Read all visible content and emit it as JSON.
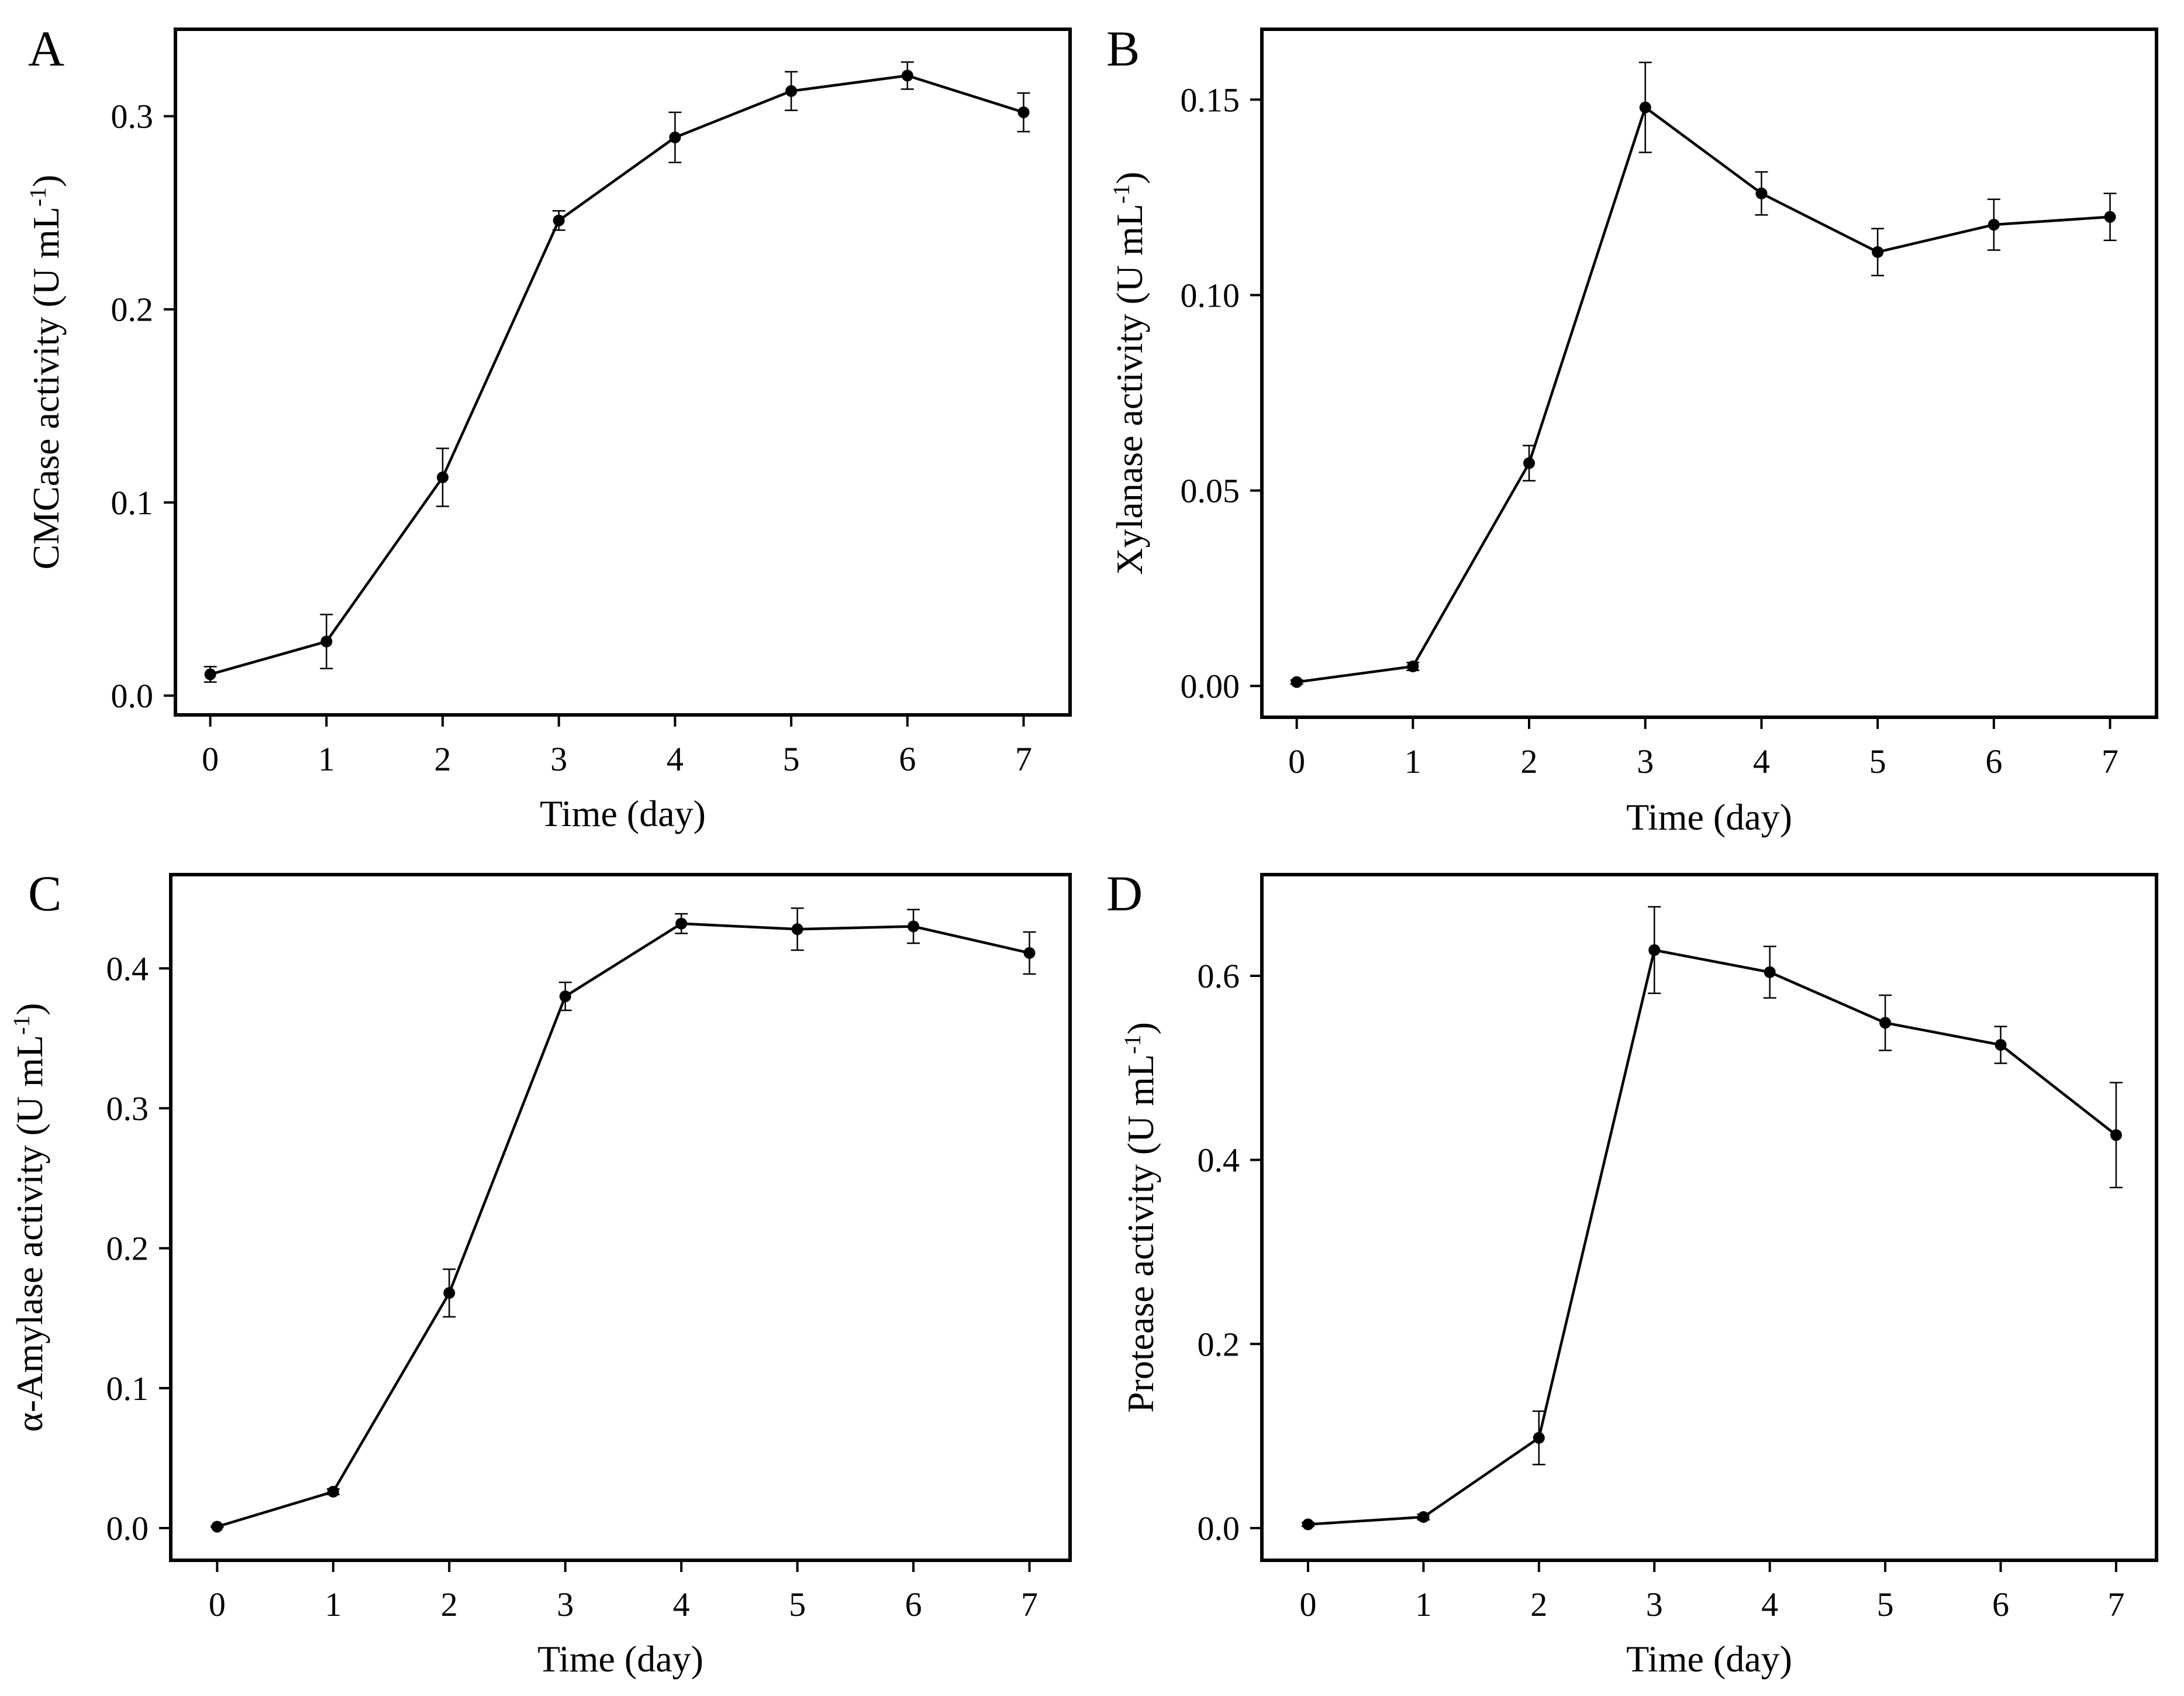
{
  "colors": {
    "line": "#000000",
    "background": "#ffffff"
  },
  "chart_data": [
    {
      "panel": "A",
      "type": "line",
      "xlabel": "Time (day)",
      "ylabel": "CMCase activity (U mL⁻¹)",
      "ylabel_base": "CMCase activity (U mL",
      "ylabel_sup": "-1",
      "ylabel_close": ")",
      "xlim": [
        -0.3,
        7.4
      ],
      "ylim": [
        -0.01,
        0.345
      ],
      "x_ticks": [
        0,
        1,
        2,
        3,
        4,
        5,
        6,
        7
      ],
      "x_tick_labels": [
        "0",
        "1",
        "2",
        "3",
        "4",
        "5",
        "6",
        "7"
      ],
      "y_ticks": [
        0.0,
        0.1,
        0.2,
        0.3
      ],
      "y_tick_labels": [
        "0.0",
        "0.1",
        "0.2",
        "0.3"
      ],
      "x": [
        0,
        1,
        2,
        3,
        4,
        5,
        6,
        7
      ],
      "values": [
        0.011,
        0.028,
        0.113,
        0.246,
        0.289,
        0.313,
        0.321,
        0.302
      ],
      "errors": [
        0.004,
        0.014,
        0.015,
        0.005,
        0.013,
        0.01,
        0.007,
        0.01
      ]
    },
    {
      "panel": "B",
      "type": "line",
      "xlabel": "Time (day)",
      "ylabel": "Xylanase activity (U mL⁻¹)",
      "ylabel_base": "Xylanase activity (U mL",
      "ylabel_sup": "-1",
      "ylabel_close": ")",
      "xlim": [
        -0.3,
        7.4
      ],
      "ylim": [
        -0.008,
        0.168
      ],
      "x_ticks": [
        0,
        1,
        2,
        3,
        4,
        5,
        6,
        7
      ],
      "x_tick_labels": [
        "0",
        "1",
        "2",
        "3",
        "4",
        "5",
        "6",
        "7"
      ],
      "y_ticks": [
        0.0,
        0.05,
        0.1,
        0.15
      ],
      "y_tick_labels": [
        "0.00",
        "0.05",
        "0.10",
        "0.15"
      ],
      "x": [
        0,
        1,
        2,
        3,
        4,
        5,
        6,
        7
      ],
      "values": [
        0.001,
        0.005,
        0.057,
        0.148,
        0.126,
        0.111,
        0.118,
        0.12
      ],
      "errors": [
        0.0005,
        0.001,
        0.0045,
        0.0115,
        0.0055,
        0.006,
        0.0065,
        0.006
      ]
    },
    {
      "panel": "C",
      "type": "line",
      "xlabel": "Time (day)",
      "ylabel": "α-Amylase activity (U mL⁻¹)",
      "ylabel_base": "α-Amylase activity (U mL",
      "ylabel_sup": "-1",
      "ylabel_close": ")",
      "xlim": [
        -0.4,
        7.35
      ],
      "ylim": [
        -0.023,
        0.467
      ],
      "x_ticks": [
        0,
        1,
        2,
        3,
        4,
        5,
        6,
        7
      ],
      "x_tick_labels": [
        "0",
        "1",
        "2",
        "3",
        "4",
        "5",
        "6",
        "7"
      ],
      "y_ticks": [
        0.0,
        0.1,
        0.2,
        0.3,
        0.4
      ],
      "y_tick_labels": [
        "0.0",
        "0.1",
        "0.2",
        "0.3",
        "0.4"
      ],
      "x": [
        0,
        1,
        2,
        3,
        4,
        5,
        6,
        7
      ],
      "values": [
        0.001,
        0.026,
        0.168,
        0.38,
        0.432,
        0.428,
        0.43,
        0.411
      ],
      "errors": [
        0.0005,
        0.002,
        0.017,
        0.01,
        0.007,
        0.015,
        0.012,
        0.015
      ]
    },
    {
      "panel": "D",
      "type": "line",
      "xlabel": "Time (day)",
      "ylabel": "Protease activity (U mL⁻¹)",
      "ylabel_base": "Protease activity (U mL",
      "ylabel_sup": "-1",
      "ylabel_close": ")",
      "xlim": [
        -0.4,
        7.35
      ],
      "ylim": [
        -0.035,
        0.71
      ],
      "x_ticks": [
        0,
        1,
        2,
        3,
        4,
        5,
        6,
        7
      ],
      "x_tick_labels": [
        "0",
        "1",
        "2",
        "3",
        "4",
        "5",
        "6",
        "7"
      ],
      "y_ticks": [
        0.0,
        0.2,
        0.4,
        0.6
      ],
      "y_tick_labels": [
        "0.0",
        "0.2",
        "0.4",
        "0.6"
      ],
      "x": [
        0,
        1,
        2,
        3,
        4,
        5,
        6,
        7
      ],
      "values": [
        0.004,
        0.012,
        0.098,
        0.628,
        0.604,
        0.549,
        0.525,
        0.427
      ],
      "errors": [
        0.002,
        0.003,
        0.029,
        0.047,
        0.028,
        0.03,
        0.02,
        0.057
      ]
    }
  ]
}
